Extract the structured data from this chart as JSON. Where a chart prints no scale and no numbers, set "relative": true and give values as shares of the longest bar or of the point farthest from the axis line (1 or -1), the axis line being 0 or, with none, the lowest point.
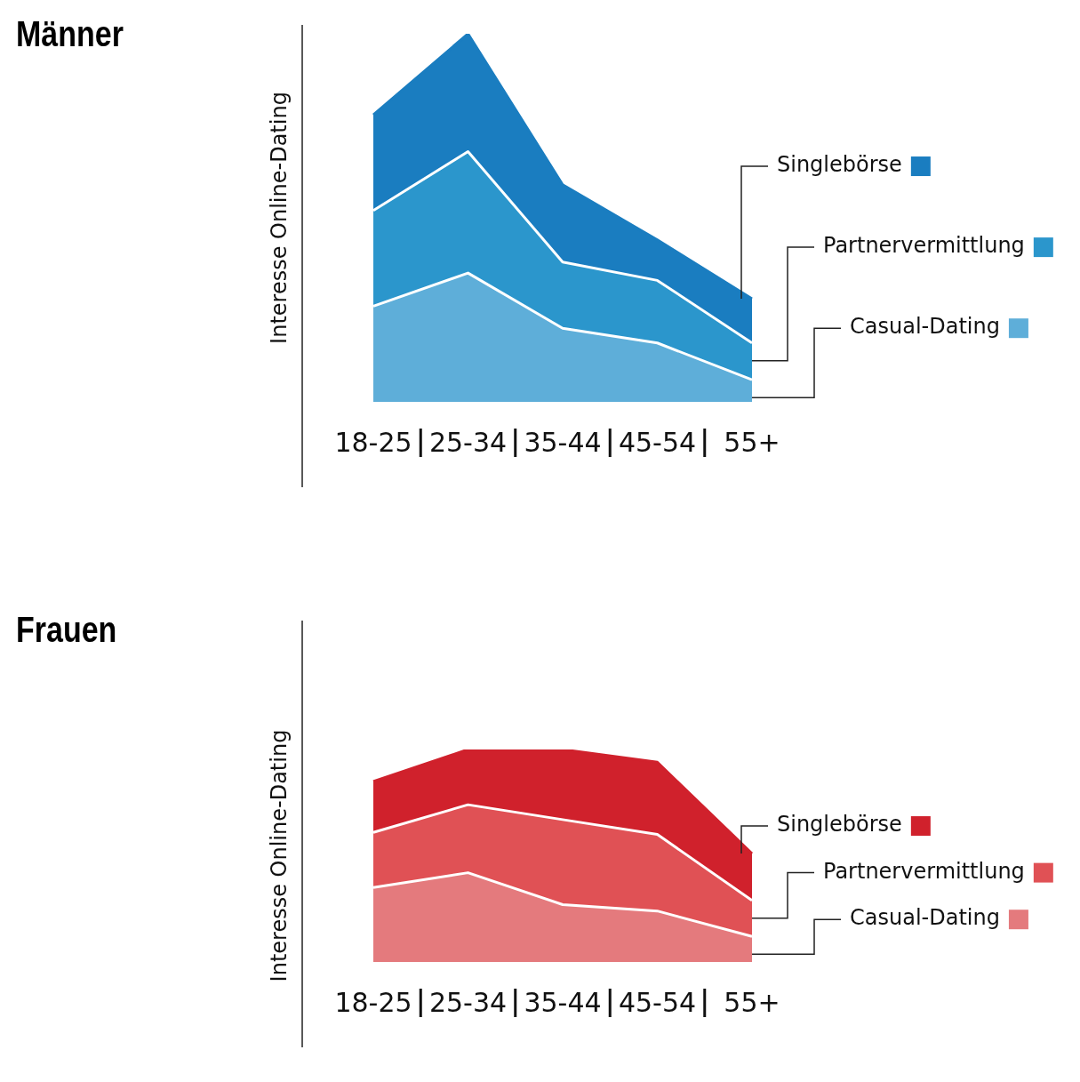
{
  "chart_data": [
    {
      "type": "area",
      "title": "Männer",
      "ylabel": "Interesse Online-Dating",
      "categories": [
        "18-25",
        "25-34",
        "35-44",
        "45-54",
        "55+"
      ],
      "relative": true,
      "stacked": true,
      "legend": "right",
      "series": [
        {
          "name": "Casual-Dating",
          "color": "#5eaed9",
          "values": [
            0.26,
            0.35,
            0.2,
            0.16,
            0.06
          ]
        },
        {
          "name": "Partnervermittlung",
          "color": "#2b96cc",
          "values": [
            0.26,
            0.33,
            0.18,
            0.17,
            0.1
          ]
        },
        {
          "name": "Singlebörse",
          "color": "#1a7dc0",
          "values": [
            0.26,
            0.32,
            0.21,
            0.11,
            0.12
          ]
        }
      ]
    },
    {
      "type": "area",
      "title": "Frauen",
      "ylabel": "Interesse Online-Dating",
      "categories": [
        "18-25",
        "25-34",
        "35-44",
        "45-54",
        "55+"
      ],
      "relative": true,
      "stacked": true,
      "legend": "right",
      "series": [
        {
          "name": "Casual-Dating",
          "color": "#e47a7d",
          "values": [
            0.35,
            0.42,
            0.27,
            0.24,
            0.12
          ]
        },
        {
          "name": "Partnervermittlung",
          "color": "#e05155",
          "values": [
            0.26,
            0.32,
            0.4,
            0.36,
            0.17
          ]
        },
        {
          "name": "Singlebörse",
          "color": "#d0212c",
          "values": [
            0.24,
            0.26,
            0.33,
            0.34,
            0.22
          ]
        }
      ]
    }
  ]
}
